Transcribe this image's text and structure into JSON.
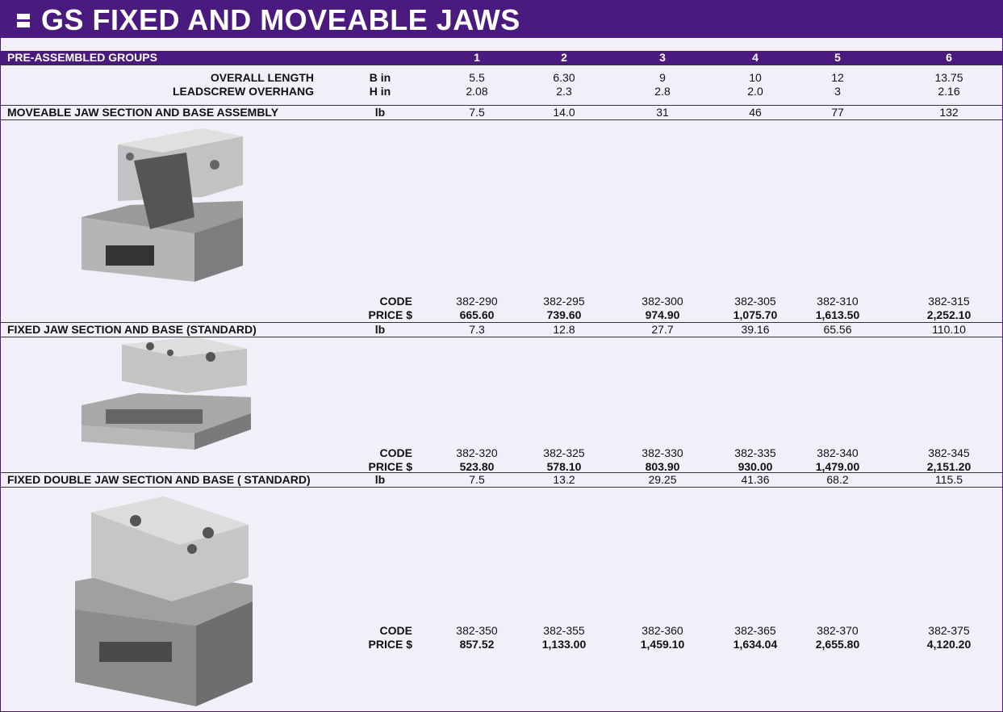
{
  "header": {
    "title": "GS FIXED AND MOVEABLE JAWS"
  },
  "table": {
    "group_label": "PRE-ASSEMBLED GROUPS",
    "columns": [
      "1",
      "2",
      "3",
      "4",
      "5",
      "6"
    ],
    "dimensions": [
      {
        "label": "OVERALL LENGTH",
        "unit": "B in",
        "values": [
          "5.5",
          "6.30",
          "9",
          "10",
          "12",
          "13.75"
        ]
      },
      {
        "label": "LEADSCREW OVERHANG",
        "unit": "H in",
        "values": [
          "2.08",
          "2.3",
          "2.8",
          "2.0",
          "3",
          "2.16"
        ]
      }
    ],
    "sections": [
      {
        "title": "MOVEABLE JAW SECTION AND BASE ASSEMBLY",
        "unit": "lb",
        "weights": [
          "7.5",
          "14.0",
          "31",
          "46",
          "77",
          "132"
        ],
        "code_label": "CODE",
        "codes": [
          "382-290",
          "382-295",
          "382-300",
          "382-305",
          "382-310",
          "382-315"
        ],
        "price_label": "PRICE $",
        "prices": [
          "665.60",
          "739.60",
          "974.90",
          "1,075.70",
          "1,613.50",
          "2,252.10"
        ]
      },
      {
        "title": "FIXED JAW SECTION AND BASE (STANDARD)",
        "unit": "lb",
        "weights": [
          "7.3",
          "12.8",
          "27.7",
          "39.16",
          "65.56",
          "110.10"
        ],
        "code_label": "CODE",
        "codes": [
          "382-320",
          "382-325",
          "382-330",
          "382-335",
          "382-340",
          "382-345"
        ],
        "price_label": "PRICE $",
        "prices": [
          "523.80",
          "578.10",
          "803.90",
          "930.00",
          "1,479.00",
          "2,151.20"
        ]
      },
      {
        "title": "FIXED DOUBLE JAW SECTION AND BASE ( STANDARD)",
        "unit": "lb",
        "weights": [
          "7.5",
          "13.2",
          "29.25",
          "41.36",
          "68.2",
          "115.5"
        ],
        "code_label": "CODE",
        "codes": [
          "382-350",
          "382-355",
          "382-360",
          "382-365",
          "382-370",
          "382-375"
        ],
        "price_label": "PRICE $",
        "prices": [
          "857.52",
          "1,133.00",
          "1,459.10",
          "1,634.04",
          "2,655.80",
          "4,120.20"
        ]
      }
    ]
  }
}
